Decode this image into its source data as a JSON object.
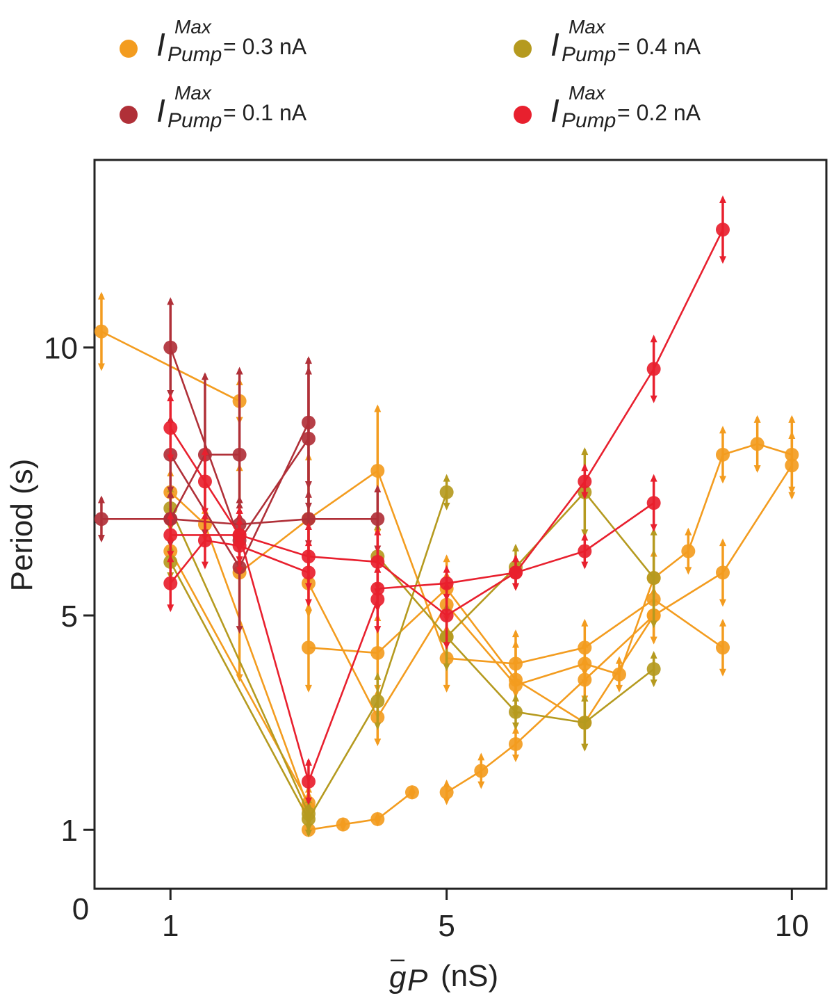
{
  "chart_data": {
    "type": "line",
    "title": "",
    "xlabel": "(nS)",
    "xlabel_symbol": "g",
    "xlabel_subscript": "P",
    "ylabel": "Period (s)",
    "xlim": [
      -0.1,
      10.5
    ],
    "ylim": [
      -0.1,
      13.5
    ],
    "xticks": [
      1,
      5,
      10
    ],
    "yticks": [
      1,
      5,
      10
    ],
    "origin_label": "0",
    "legend": [
      {
        "symbol": "I",
        "sup": "Max",
        "sub": "Pump",
        "text": "=   0.3   nA",
        "color": "#f39c1f",
        "series_key": "0.3"
      },
      {
        "symbol": "I",
        "sup": "Max",
        "sub": "Pump",
        "text": "= 0.4 nA",
        "color": "#b59a1f",
        "series_key": "0.4"
      },
      {
        "symbol": "I",
        "sup": "Max",
        "sub": "Pump",
        "text": "= 0.1 nA",
        "color": "#b03038",
        "series_key": "0.1"
      },
      {
        "symbol": "I",
        "sup": "Max",
        "sub": "Pump",
        "text": "= 0.2 nA",
        "color": "#e8202e",
        "series_key": "0.2"
      }
    ],
    "series": [
      {
        "name": "0.3 nA A",
        "color": "#f39c1f",
        "points": [
          {
            "x": 0.0,
            "y": 10.3,
            "err": 0.7
          },
          {
            "x": 2.0,
            "y": 9.0,
            "err": 0.4
          }
        ]
      },
      {
        "name": "0.3 nA B",
        "color": "#f39c1f",
        "points": [
          {
            "x": 1.0,
            "y": 7.3,
            "err": 0.4
          },
          {
            "x": 1.5,
            "y": 6.7,
            "err": 0.3
          },
          {
            "x": 3.0,
            "y": 1.4,
            "err": 0.3
          }
        ]
      },
      {
        "name": "0.3 nA C",
        "color": "#f39c1f",
        "points": [
          {
            "x": 1.0,
            "y": 6.2,
            "err": 0.3
          },
          {
            "x": 3.0,
            "y": 1.5,
            "err": 0.3
          }
        ]
      },
      {
        "name": "0.3 nA D",
        "color": "#f39c1f",
        "points": [
          {
            "x": 2.0,
            "y": 5.8,
            "err": 2.0
          },
          {
            "x": 3.0,
            "y": 6.8,
            "err": 1.2
          },
          {
            "x": 4.0,
            "y": 7.7,
            "err": 1.2
          },
          {
            "x": 5.0,
            "y": 4.2,
            "err": 0.6
          },
          {
            "x": 6.0,
            "y": 4.1,
            "err": 0.6
          },
          {
            "x": 7.0,
            "y": 4.4,
            "err": 0.5
          },
          {
            "x": 8.0,
            "y": 5.3,
            "err": 0.5
          },
          {
            "x": 9.0,
            "y": 4.4,
            "err": 0.5
          }
        ]
      },
      {
        "name": "0.3 nA E",
        "color": "#f39c1f",
        "points": [
          {
            "x": 3.0,
            "y": 4.4,
            "err": 0.8
          },
          {
            "x": 4.0,
            "y": 4.3,
            "err": 0.7
          },
          {
            "x": 5.0,
            "y": 5.5,
            "err": 0.6
          },
          {
            "x": 6.0,
            "y": 3.8,
            "err": 0.7
          },
          {
            "x": 7.0,
            "y": 3.0,
            "err": 0.5
          },
          {
            "x": 8.0,
            "y": 5.0,
            "err": 0.5
          },
          {
            "x": 9.0,
            "y": 5.8,
            "err": 0.6
          },
          {
            "x": 10.0,
            "y": 7.8,
            "err": 0.6
          }
        ]
      },
      {
        "name": "0.3 nA F",
        "color": "#f39c1f",
        "points": [
          {
            "x": 3.0,
            "y": 5.6,
            "err": 0.6
          },
          {
            "x": 4.0,
            "y": 3.1,
            "err": 0.5
          },
          {
            "x": 5.0,
            "y": 5.2,
            "err": 0.6
          },
          {
            "x": 6.0,
            "y": 3.7,
            "err": 0.5
          },
          {
            "x": 7.0,
            "y": 4.1,
            "err": 0.4
          },
          {
            "x": 7.5,
            "y": 3.9,
            "err": 0.3
          },
          {
            "x": 8.0,
            "y": 5.7,
            "err": 0.5
          },
          {
            "x": 8.5,
            "y": 6.2,
            "err": 0.4
          },
          {
            "x": 9.0,
            "y": 8.0,
            "err": 0.5
          },
          {
            "x": 9.5,
            "y": 8.2,
            "err": 0.5
          },
          {
            "x": 10.0,
            "y": 8.0,
            "err": 0.7
          }
        ]
      },
      {
        "name": "0.3 nA G",
        "color": "#f39c1f",
        "points": [
          {
            "x": 3.0,
            "y": 1.0,
            "err": 0.1
          },
          {
            "x": 3.5,
            "y": 1.1,
            "err": 0.1
          },
          {
            "x": 4.0,
            "y": 1.2,
            "err": 0.1
          },
          {
            "x": 4.5,
            "y": 1.7,
            "err": 0.1
          }
        ]
      },
      {
        "name": "0.3 nA H",
        "color": "#f39c1f",
        "points": [
          {
            "x": 5.0,
            "y": 1.7,
            "err": 0.2
          },
          {
            "x": 5.5,
            "y": 2.1,
            "err": 0.3
          },
          {
            "x": 6.0,
            "y": 2.6,
            "err": 0.3
          },
          {
            "x": 7.0,
            "y": 3.8,
            "err": 0.4
          },
          {
            "x": 8.0,
            "y": 5.0,
            "err": 0.5
          }
        ]
      },
      {
        "name": "0.4 nA A",
        "color": "#b59a1f",
        "points": [
          {
            "x": 1.0,
            "y": 6.0,
            "err": 0.3
          },
          {
            "x": 3.0,
            "y": 1.2,
            "err": 0.3
          },
          {
            "x": 4.0,
            "y": 3.4,
            "err": 0.5
          },
          {
            "x": 5.0,
            "y": 7.3,
            "err": 0.3
          }
        ]
      },
      {
        "name": "0.4 nA B",
        "color": "#b59a1f",
        "points": [
          {
            "x": 1.0,
            "y": 7.0,
            "err": 0.4
          },
          {
            "x": 3.0,
            "y": 1.3,
            "err": 0.3
          }
        ]
      },
      {
        "name": "0.4 nA C",
        "color": "#b59a1f",
        "points": [
          {
            "x": 4.0,
            "y": 6.1,
            "err": 0.6
          },
          {
            "x": 5.0,
            "y": 4.6,
            "err": 0.6
          },
          {
            "x": 6.0,
            "y": 3.2,
            "err": 0.3
          },
          {
            "x": 7.0,
            "y": 3.0,
            "err": 0.5
          },
          {
            "x": 8.0,
            "y": 4.0,
            "err": 0.3
          }
        ]
      },
      {
        "name": "0.4 nA D",
        "color": "#b59a1f",
        "points": [
          {
            "x": 5.0,
            "y": 4.6,
            "err": 0.6
          },
          {
            "x": 6.0,
            "y": 5.9,
            "err": 0.4
          },
          {
            "x": 7.0,
            "y": 7.3,
            "err": 0.8
          },
          {
            "x": 8.0,
            "y": 5.7,
            "err": 0.9
          }
        ]
      },
      {
        "name": "0.1 nA A",
        "color": "#b03038",
        "points": [
          {
            "x": 0.0,
            "y": 6.8,
            "err": 0.4
          },
          {
            "x": 1.0,
            "y": 6.8,
            "err": 0.5
          },
          {
            "x": 2.0,
            "y": 6.7,
            "err": 0.5
          },
          {
            "x": 3.0,
            "y": 6.8,
            "err": 0.5
          },
          {
            "x": 4.0,
            "y": 6.8,
            "err": 0.6
          }
        ]
      },
      {
        "name": "0.1 nA B",
        "color": "#b03038",
        "points": [
          {
            "x": 1.0,
            "y": 10.0,
            "err": 0.9
          },
          {
            "x": 2.0,
            "y": 6.4,
            "err": 0.5
          },
          {
            "x": 3.0,
            "y": 8.3,
            "err": 1.3
          }
        ]
      },
      {
        "name": "0.1 nA C",
        "color": "#b03038",
        "points": [
          {
            "x": 1.0,
            "y": 8.0,
            "err": 0.7
          },
          {
            "x": 2.0,
            "y": 5.9,
            "err": 1.2
          },
          {
            "x": 3.0,
            "y": 8.6,
            "err": 1.2
          }
        ]
      },
      {
        "name": "0.1 nA D",
        "color": "#b03038",
        "points": [
          {
            "x": 1.0,
            "y": 6.8,
            "err": 0.5
          },
          {
            "x": 1.5,
            "y": 8.0,
            "err": 1.5
          },
          {
            "x": 2.0,
            "y": 8.0,
            "err": 1.6
          }
        ]
      },
      {
        "name": "0.2 nA A",
        "color": "#e8202e",
        "points": [
          {
            "x": 1.0,
            "y": 8.5,
            "err": 0.6
          },
          {
            "x": 1.5,
            "y": 7.5,
            "err": 0.6
          },
          {
            "x": 2.0,
            "y": 6.5,
            "err": 0.5
          },
          {
            "x": 3.0,
            "y": 6.1,
            "err": 0.6
          },
          {
            "x": 4.0,
            "y": 6.0,
            "err": 0.6
          },
          {
            "x": 5.0,
            "y": 5.0,
            "err": 0.6
          },
          {
            "x": 6.0,
            "y": 5.8,
            "err": 0.3
          },
          {
            "x": 7.0,
            "y": 7.5,
            "err": 0.3
          },
          {
            "x": 8.0,
            "y": 9.6,
            "err": 0.6
          },
          {
            "x": 9.0,
            "y": 12.2,
            "err": 0.6
          }
        ]
      },
      {
        "name": "0.2 nA B",
        "color": "#e8202e",
        "points": [
          {
            "x": 1.0,
            "y": 5.6,
            "err": 0.5
          },
          {
            "x": 1.5,
            "y": 6.4,
            "err": 0.5
          },
          {
            "x": 2.0,
            "y": 6.3,
            "err": 0.5
          },
          {
            "x": 3.0,
            "y": 5.8,
            "err": 0.6
          }
        ]
      },
      {
        "name": "0.2 nA C",
        "color": "#e8202e",
        "points": [
          {
            "x": 1.0,
            "y": 6.5,
            "err": 0.4
          },
          {
            "x": 2.0,
            "y": 6.5,
            "err": 0.5
          },
          {
            "x": 3.0,
            "y": 1.9,
            "err": 0.4
          },
          {
            "x": 4.0,
            "y": 5.3,
            "err": 0.6
          }
        ]
      },
      {
        "name": "0.2 nA D",
        "color": "#e8202e",
        "points": [
          {
            "x": 4.0,
            "y": 5.5,
            "err": 0.4
          },
          {
            "x": 5.0,
            "y": 5.6,
            "err": 0.3
          },
          {
            "x": 6.0,
            "y": 5.8,
            "err": 0.3
          },
          {
            "x": 7.0,
            "y": 6.2,
            "err": 0.3
          },
          {
            "x": 8.0,
            "y": 7.1,
            "err": 0.5
          }
        ]
      }
    ]
  }
}
